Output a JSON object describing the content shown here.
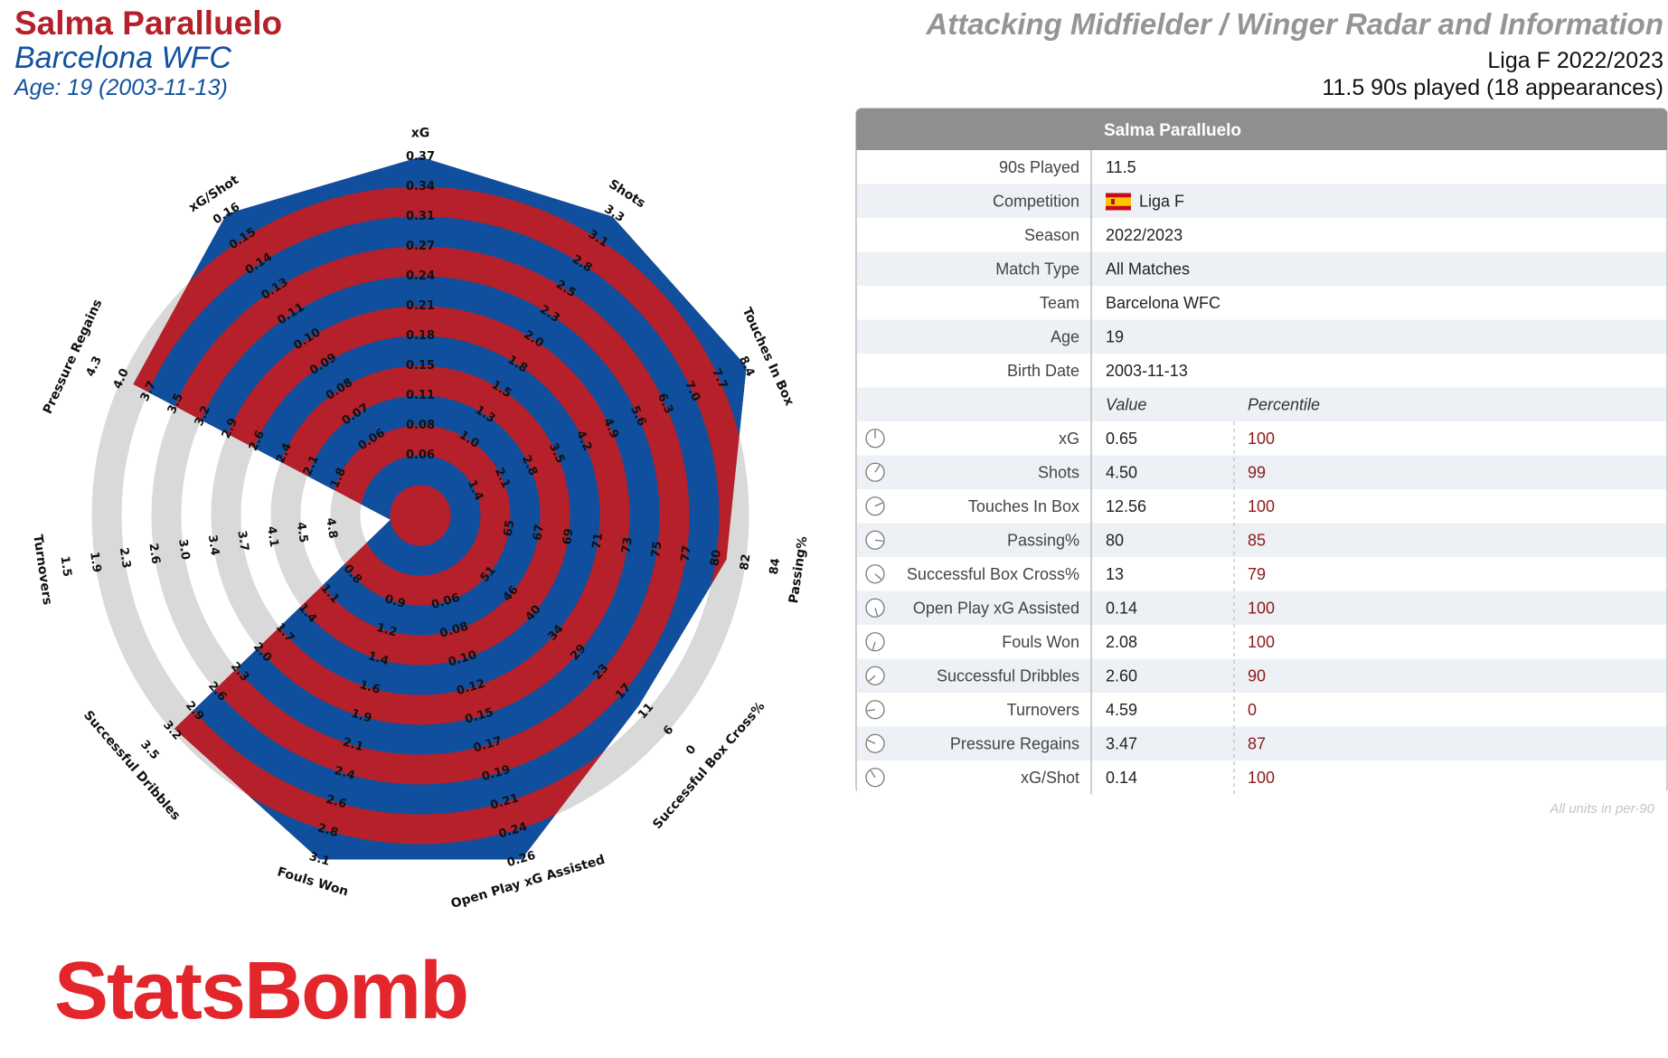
{
  "header": {
    "player_name": "Salma Paralluelo",
    "team": "Barcelona WFC",
    "age_line": "Age: 19 (2003-11-13)",
    "radar_title": "Attacking Midfielder / Winger Radar and Information",
    "competition_line": "Liga F 2022/2023",
    "played_line": "11.5 90s played (18 appearances)"
  },
  "chart_data": {
    "type": "radar",
    "colors": {
      "band_red": "#b5202a",
      "band_blue": "#0f4f9e",
      "ring_gray": "#d9d9d9"
    },
    "metrics": [
      {
        "name": "xG",
        "value": 0.65,
        "percentile": 100,
        "ticks": [
          "0.06",
          "0.08",
          "0.11",
          "0.15",
          "0.18",
          "0.21",
          "0.24",
          "0.27",
          "0.31",
          "0.34",
          "0.37"
        ],
        "outer_ticks": []
      },
      {
        "name": "Shots",
        "value": 4.5,
        "percentile": 99,
        "ticks": [
          "1.0",
          "1.3",
          "1.5",
          "1.8",
          "2.0",
          "2.3",
          "2.5",
          "2.8",
          "3.1",
          "3.3"
        ],
        "outer_ticks": []
      },
      {
        "name": "Touches In Box",
        "value": 12.56,
        "percentile": 100,
        "ticks": [
          "1.4",
          "2.1",
          "2.8",
          "3.5",
          "4.2",
          "4.9",
          "5.6",
          "6.3",
          "7.0",
          "7.7",
          "8.4"
        ],
        "outer_ticks": []
      },
      {
        "name": "Passing%",
        "value": 80,
        "percentile": 85,
        "ticks": [
          "65",
          "67",
          "69",
          "71",
          "73",
          "75",
          "77",
          "80"
        ],
        "outer_ticks": [
          "82",
          "84"
        ]
      },
      {
        "name": "Successful Box Cross%",
        "value": 13,
        "percentile": 79,
        "ticks": [
          "51",
          "46",
          "40",
          "34",
          "29",
          "23",
          "17"
        ],
        "outer_ticks": [
          "11",
          "6",
          "0"
        ]
      },
      {
        "name": "Open Play xG Assisted",
        "value": 0.14,
        "percentile": 100,
        "ticks": [
          "0.06",
          "0.08",
          "0.10",
          "0.12",
          "0.15"
        ],
        "outer_ticks": [
          "0.17",
          "0.19",
          "0.21",
          "0.24",
          "0.26"
        ]
      },
      {
        "name": "Fouls Won",
        "value": 2.08,
        "percentile": 100,
        "ticks": [
          "0.9",
          "1.2",
          "1.4",
          "1.6",
          "1.9",
          "2.1"
        ],
        "outer_ticks": [
          "2.4",
          "2.6",
          "2.8",
          "3.1"
        ]
      },
      {
        "name": "Successful Dribbles",
        "value": 2.6,
        "percentile": 90,
        "ticks": [
          "0.8",
          "1.1",
          "1.4",
          "1.7",
          "2.0",
          "2.3",
          "2.6"
        ],
        "outer_ticks": [
          "2.9",
          "3.2",
          "3.5"
        ]
      },
      {
        "name": "Turnovers",
        "value": 4.59,
        "percentile": 0,
        "ticks": [
          "4.8",
          "4.5"
        ],
        "outer_ticks": [
          "4.1",
          "3.7",
          "3.4",
          "3.0",
          "2.6",
          "2.3",
          "1.9",
          "1.5"
        ]
      },
      {
        "name": "Pressure Regains",
        "value": 3.47,
        "percentile": 87,
        "ticks": [
          "1.8",
          "2.1",
          "2.4",
          "2.6",
          "2.9",
          "3.2",
          "3.5"
        ],
        "outer_ticks": [
          "3.7",
          "4.0",
          "4.3"
        ]
      },
      {
        "name": "xG/Shot",
        "value": 0.14,
        "percentile": 100,
        "ticks": [
          "0.06",
          "0.07",
          "0.08",
          "0.09",
          "0.10",
          "0.11",
          "0.13",
          "0.14"
        ],
        "outer_ticks": [
          "0.15",
          "0.16"
        ]
      }
    ]
  },
  "table": {
    "title": "Salma Paralluelo",
    "info_rows": [
      {
        "label": "90s Played",
        "value": "11.5"
      },
      {
        "label": "Competition",
        "value": "Liga F",
        "flag": true
      },
      {
        "label": "Season",
        "value": "2022/2023"
      },
      {
        "label": "Match Type",
        "value": "All Matches"
      },
      {
        "label": "Team",
        "value": "Barcelona WFC"
      },
      {
        "label": "Age",
        "value": "19"
      },
      {
        "label": "Birth Date",
        "value": "2003-11-13"
      }
    ],
    "col_value": "Value",
    "col_percentile": "Percentile",
    "metric_rows": [
      {
        "label": "xG",
        "value": "0.65",
        "percentile": "100"
      },
      {
        "label": "Shots",
        "value": "4.50",
        "percentile": "99"
      },
      {
        "label": "Touches In Box",
        "value": "12.56",
        "percentile": "100"
      },
      {
        "label": "Passing%",
        "value": "80",
        "percentile": "85"
      },
      {
        "label": "Successful Box Cross%",
        "value": "13",
        "percentile": "79"
      },
      {
        "label": "Open Play xG Assisted",
        "value": "0.14",
        "percentile": "100"
      },
      {
        "label": "Fouls Won",
        "value": "2.08",
        "percentile": "100"
      },
      {
        "label": "Successful Dribbles",
        "value": "2.60",
        "percentile": "90"
      },
      {
        "label": "Turnovers",
        "value": "4.59",
        "percentile": "0"
      },
      {
        "label": "Pressure Regains",
        "value": "3.47",
        "percentile": "87"
      },
      {
        "label": "xG/Shot",
        "value": "0.14",
        "percentile": "100"
      }
    ],
    "footnote": "All units in per-90"
  },
  "logo": {
    "text": "StatsBomb",
    "icon": "statsbomb-logo"
  }
}
